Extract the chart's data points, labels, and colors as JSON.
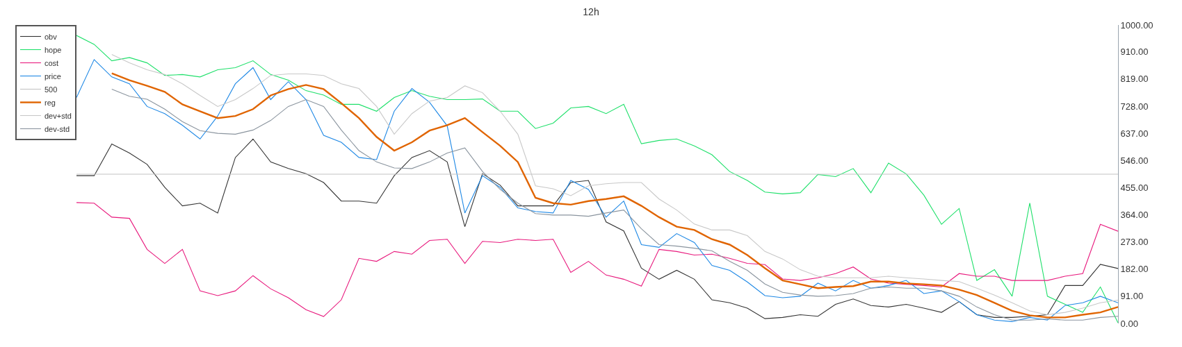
{
  "chart_data": {
    "type": "line",
    "title": "12h",
    "categories": [
      null,
      null,
      null,
      null,
      null,
      null,
      null,
      null,
      null,
      null,
      null,
      null,
      null,
      null,
      null,
      null,
      null,
      null,
      null,
      null,
      null,
      null,
      null,
      null,
      null,
      null,
      null,
      null,
      null,
      null,
      null,
      null,
      null,
      null,
      null,
      null,
      null,
      null,
      null,
      null,
      null,
      null,
      null,
      null,
      null,
      null,
      null,
      null,
      null,
      null,
      null,
      null,
      null,
      null,
      null,
      null,
      null,
      null,
      null,
      null
    ],
    "series": [
      {
        "name": "obv",
        "color": "#333333",
        "values": [
          495,
          495,
          601,
          571,
          533,
          456,
          394,
          403,
          370,
          556,
          618,
          541,
          519,
          502,
          472,
          410,
          410,
          403,
          495,
          556,
          579,
          541,
          324,
          502,
          463,
          394,
          394,
          394,
          472,
          479,
          340,
          310,
          185,
          148,
          178,
          148,
          79,
          69,
          51,
          16,
          20,
          29,
          24,
          64,
          82,
          60,
          55,
          64,
          51,
          37,
          73,
          29,
          20,
          20,
          24,
          29,
          127,
          127,
          198,
          184
        ]
      },
      {
        "name": "hope",
        "color": "#1ee06a",
        "values": [
          965,
          935,
          880,
          891,
          873,
          831,
          834,
          826,
          850,
          857,
          880,
          834,
          815,
          780,
          765,
          734,
          734,
          711,
          757,
          780,
          761,
          750,
          750,
          752,
          711,
          711,
          653,
          671,
          722,
          727,
          703,
          734,
          602,
          613,
          618,
          595,
          565,
          509,
          479,
          440,
          434,
          438,
          499,
          492,
          519,
          438,
          537,
          501,
          430,
          332,
          385,
          144,
          180,
          91,
          403,
          91,
          64,
          37,
          122,
          2
        ]
      },
      {
        "name": "cost",
        "color": "#e8197d",
        "values": [
          405,
          403,
          356,
          352,
          248,
          201,
          248,
          109,
          93,
          109,
          160,
          116,
          86,
          46,
          23,
          79,
          218,
          208,
          241,
          232,
          278,
          282,
          201,
          275,
          271,
          282,
          278,
          282,
          171,
          208,
          162,
          148,
          125,
          248,
          241,
          229,
          232,
          218,
          201,
          197,
          149,
          144,
          153,
          167,
          189,
          149,
          135,
          131,
          127,
          122,
          167,
          158,
          158,
          144,
          144,
          144,
          158,
          167,
          332,
          309
        ]
      },
      {
        "name": "price",
        "color": "#1e88e5",
        "values": [
          757,
          884,
          826,
          803,
          727,
          703,
          664,
          618,
          695,
          803,
          857,
          750,
          810,
          750,
          630,
          607,
          556,
          549,
          711,
          787,
          741,
          662,
          370,
          495,
          456,
          387,
          375,
          370,
          479,
          449,
          356,
          410,
          264,
          255,
          301,
          271,
          194,
          178,
          139,
          93,
          86,
          91,
          135,
          109,
          144,
          118,
          127,
          144,
          100,
          109,
          73,
          29,
          11,
          6,
          20,
          11,
          60,
          69,
          91,
          69
        ]
      },
      {
        "name": "500",
        "color": "#c4c4c4",
        "values": [
          500,
          500,
          500,
          500,
          500,
          500,
          500,
          500,
          500,
          500,
          500,
          500,
          500,
          500,
          500,
          500,
          500,
          500,
          500,
          500,
          500,
          500,
          500,
          500,
          500,
          500,
          500,
          500,
          500,
          500,
          500,
          500,
          500,
          500,
          500,
          500,
          500,
          500,
          500,
          500,
          500,
          500,
          500,
          500,
          500,
          500,
          500,
          500,
          500,
          500,
          500,
          500,
          500,
          500,
          500,
          500,
          500,
          500,
          500,
          500
        ]
      },
      {
        "name": "reg",
        "color": "#e06400",
        "values": [
          null,
          null,
          838,
          815,
          796,
          776,
          734,
          711,
          688,
          695,
          718,
          764,
          785,
          799,
          785,
          738,
          688,
          625,
          579,
          607,
          646,
          664,
          688,
          641,
          595,
          541,
          421,
          403,
          398,
          410,
          417,
          426,
          394,
          356,
          324,
          313,
          282,
          264,
          229,
          185,
          144,
          131,
          118,
          122,
          125,
          140,
          140,
          134,
          131,
          127,
          113,
          95,
          69,
          42,
          27,
          20,
          20,
          29,
          37,
          55
        ]
      },
      {
        "name": "dev+std",
        "color": "#c8c8c8",
        "values": [
          null,
          null,
          901,
          873,
          850,
          834,
          803,
          764,
          727,
          750,
          787,
          831,
          836,
          836,
          831,
          803,
          787,
          727,
          634,
          703,
          745,
          757,
          796,
          773,
          711,
          634,
          461,
          451,
          428,
          461,
          468,
          472,
          472,
          417,
          380,
          333,
          313,
          313,
          294,
          241,
          216,
          180,
          158,
          153,
          153,
          153,
          158,
          153,
          149,
          144,
          140,
          118,
          95,
          69,
          42,
          29,
          37,
          51,
          69,
          78
        ]
      },
      {
        "name": "dev-std",
        "color": "#8a949e",
        "values": [
          null,
          null,
          785,
          761,
          751,
          718,
          676,
          646,
          637,
          634,
          648,
          680,
          727,
          750,
          727,
          648,
          579,
          541,
          521,
          519,
          541,
          571,
          588,
          509,
          449,
          403,
          368,
          363,
          363,
          359,
          370,
          380,
          317,
          264,
          259,
          252,
          243,
          208,
          178,
          132,
          104,
          95,
          91,
          93,
          100,
          118,
          122,
          118,
          118,
          109,
          91,
          55,
          29,
          11,
          11,
          15,
          11,
          11,
          20,
          24
        ]
      }
    ],
    "ylim": [
      0,
      1000
    ],
    "yticks": [
      {
        "value": 0,
        "label": "0.00"
      },
      {
        "value": 91,
        "label": "91.00"
      },
      {
        "value": 182,
        "label": "182.00"
      },
      {
        "value": 273,
        "label": "273.00"
      },
      {
        "value": 364,
        "label": "364.00"
      },
      {
        "value": 455,
        "label": "455.00"
      },
      {
        "value": 546,
        "label": "546.00"
      },
      {
        "value": 637,
        "label": "637.00"
      },
      {
        "value": 728,
        "label": "728.00"
      },
      {
        "value": 819,
        "label": "819.00"
      },
      {
        "value": 910,
        "label": "910.00"
      },
      {
        "value": 1000,
        "label": "1000.00"
      }
    ],
    "tick_labels": "y",
    "legend": "top left",
    "marker": "none",
    "line_style": "solid"
  }
}
